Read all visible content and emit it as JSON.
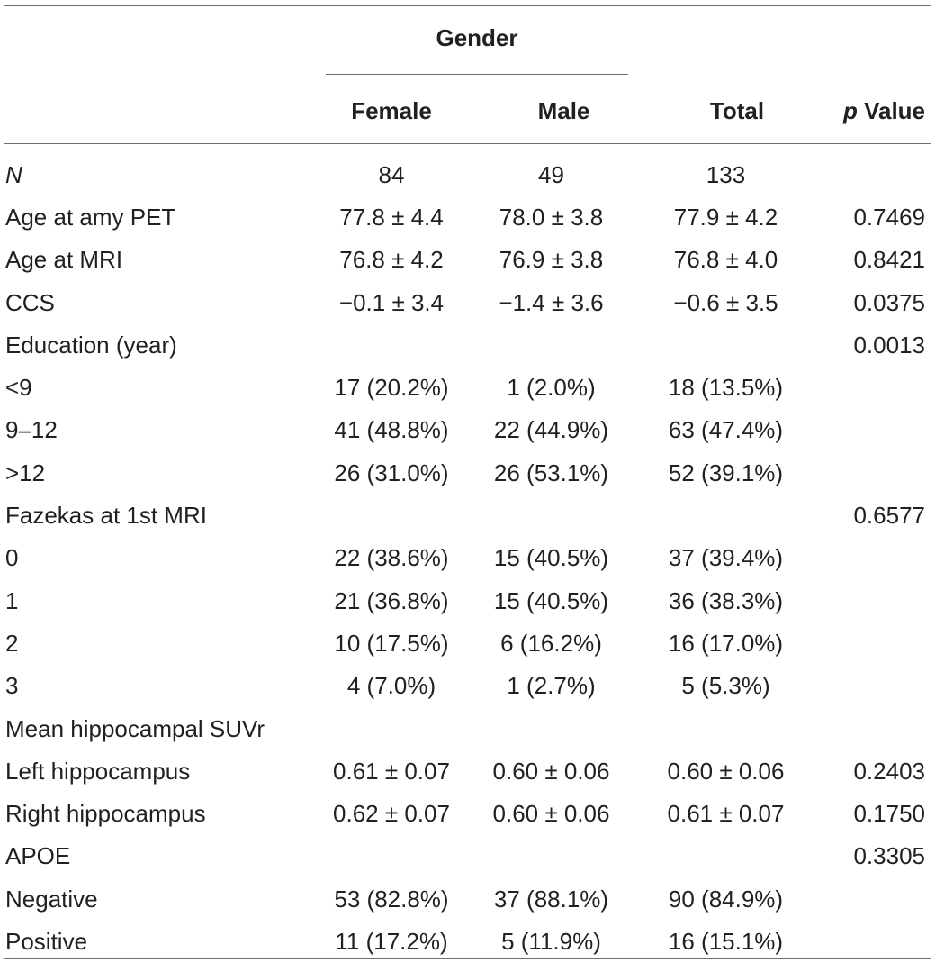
{
  "header": {
    "group_label": "Gender",
    "columns": [
      "Female",
      "Male",
      "Total"
    ],
    "p_label_italic": "p",
    "p_label_rest": " Value"
  },
  "rows": [
    {
      "label": "N",
      "italic": true,
      "female": "84",
      "male": "49",
      "total": "133",
      "p": ""
    },
    {
      "label": "Age at amy PET",
      "female": "77.8 ± 4.4",
      "male": "78.0 ± 3.8",
      "total": "77.9 ± 4.2",
      "p": "0.7469"
    },
    {
      "label": "Age at MRI",
      "female": "76.8 ± 4.2",
      "male": "76.9 ± 3.8",
      "total": "76.8 ± 4.0",
      "p": "0.8421"
    },
    {
      "label": "CCS",
      "female": "−0.1 ± 3.4",
      "male": "−1.4 ± 3.6",
      "total": "−0.6 ± 3.5",
      "p": "0.0375"
    },
    {
      "label": "Education (year)",
      "female": "",
      "male": "",
      "total": "",
      "p": "0.0013"
    },
    {
      "label": "<9",
      "female": "17 (20.2%)",
      "male": "1 (2.0%)",
      "total": "18 (13.5%)",
      "p": ""
    },
    {
      "label": "9–12",
      "female": "41 (48.8%)",
      "male": "22 (44.9%)",
      "total": "63 (47.4%)",
      "p": ""
    },
    {
      "label": ">12",
      "female": "26 (31.0%)",
      "male": "26 (53.1%)",
      "total": "52 (39.1%)",
      "p": ""
    },
    {
      "label": "Fazekas at 1st MRI",
      "female": "",
      "male": "",
      "total": "",
      "p": "0.6577"
    },
    {
      "label": "0",
      "female": "22 (38.6%)",
      "male": "15 (40.5%)",
      "total": "37 (39.4%)",
      "p": ""
    },
    {
      "label": "1",
      "female": "21 (36.8%)",
      "male": "15 (40.5%)",
      "total": "36 (38.3%)",
      "p": ""
    },
    {
      "label": "2",
      "female": "10 (17.5%)",
      "male": "6 (16.2%)",
      "total": "16 (17.0%)",
      "p": ""
    },
    {
      "label": "3",
      "female": "4 (7.0%)",
      "male": "1 (2.7%)",
      "total": "5 (5.3%)",
      "p": ""
    },
    {
      "label": "Mean hippocampal SUVr",
      "female": "",
      "male": "",
      "total": "",
      "p": ""
    },
    {
      "label": "Left hippocampus",
      "female": "0.61 ± 0.07",
      "male": "0.60 ± 0.06",
      "total": "0.60 ± 0.06",
      "p": "0.2403"
    },
    {
      "label": "Right hippocampus",
      "female": "0.62 ± 0.07",
      "male": "0.60 ± 0.06",
      "total": "0.61 ± 0.07",
      "p": "0.1750"
    },
    {
      "label": "APOE",
      "female": "",
      "male": "",
      "total": "",
      "p": "0.3305"
    },
    {
      "label": "Negative",
      "female": "53 (82.8%)",
      "male": "37 (88.1%)",
      "total": "90 (84.9%)",
      "p": ""
    },
    {
      "label": "Positive",
      "female": "11 (17.2%)",
      "male": "5 (11.9%)",
      "total": "16 (15.1%)",
      "p": ""
    }
  ]
}
